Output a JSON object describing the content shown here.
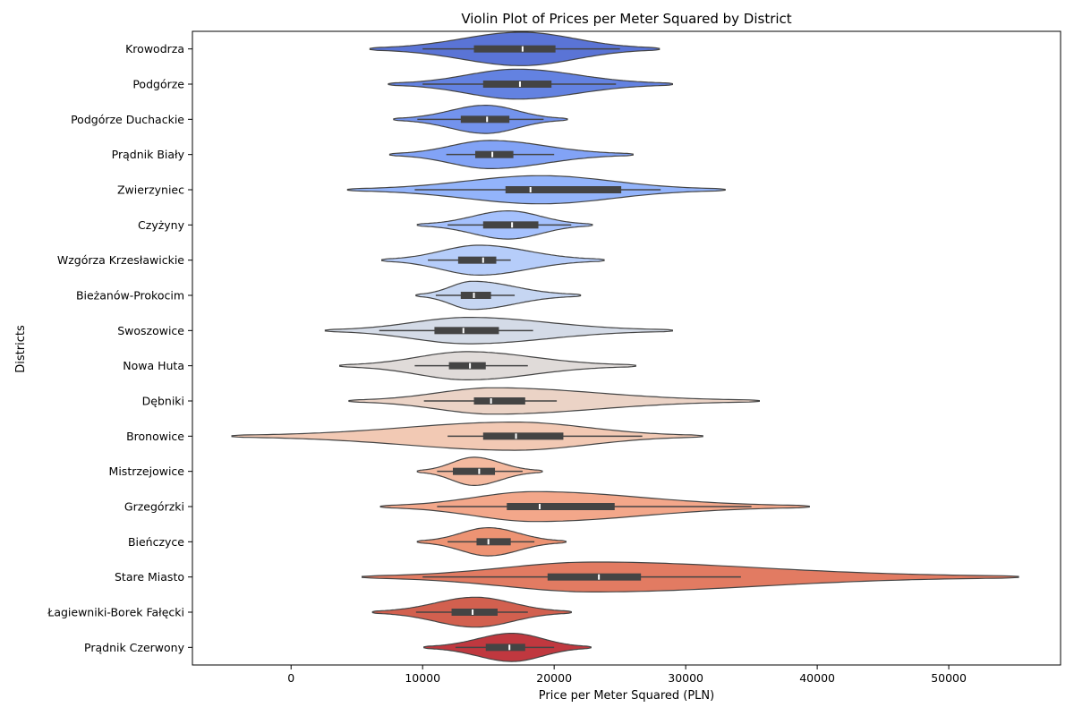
{
  "chart_data": {
    "type": "violin",
    "title": "Violin Plot of Prices per Meter Squared by District",
    "xlabel": "Price per Meter Squared (PLN)",
    "ylabel": "Districts",
    "xlim": [
      -7500,
      58500
    ],
    "xticks": [
      0,
      10000,
      20000,
      30000,
      40000,
      50000
    ],
    "grid": false,
    "colormap": "coolwarm",
    "series": [
      {
        "name": "Krowodrza",
        "color": "#5a74d6",
        "range": [
          6000,
          28000
        ],
        "whiskers": [
          10000,
          25000
        ],
        "q1": 13900,
        "median": 17600,
        "q3": 20100,
        "peak": 17500,
        "width": 0.95
      },
      {
        "name": "Podgórze",
        "color": "#6382e1",
        "range": [
          7400,
          29000
        ],
        "whiskers": [
          10000,
          24700
        ],
        "q1": 14600,
        "median": 17400,
        "q3": 19800,
        "peak": 17200,
        "width": 0.85
      },
      {
        "name": "Podgórze Duchackie",
        "color": "#7393ed",
        "range": [
          7800,
          21000
        ],
        "whiskers": [
          9600,
          19200
        ],
        "q1": 12900,
        "median": 14900,
        "q3": 16600,
        "peak": 14800,
        "width": 0.8
      },
      {
        "name": "Prądnik Biały",
        "color": "#82a3f6",
        "range": [
          7500,
          26000
        ],
        "whiskers": [
          11800,
          20000
        ],
        "q1": 14000,
        "median": 15300,
        "q3": 16900,
        "peak": 15100,
        "width": 0.8
      },
      {
        "name": "Zwierzyniec",
        "color": "#93b4fb",
        "range": [
          4300,
          33000
        ],
        "whiskers": [
          9400,
          28100
        ],
        "q1": 16300,
        "median": 18200,
        "q3": 25100,
        "peak": 19000,
        "width": 0.8
      },
      {
        "name": "Czyżyny",
        "color": "#a5c1fd",
        "range": [
          9600,
          22900
        ],
        "whiskers": [
          11900,
          21300
        ],
        "q1": 14600,
        "median": 16800,
        "q3": 18800,
        "peak": 16500,
        "width": 0.8
      },
      {
        "name": "Wzgórza Krzesławickie",
        "color": "#b6cdfa",
        "range": [
          6900,
          23800
        ],
        "whiskers": [
          10400,
          16700
        ],
        "q1": 12700,
        "median": 14600,
        "q3": 15600,
        "peak": 14300,
        "width": 0.85
      },
      {
        "name": "Bieżanów-Prokocim",
        "color": "#c6d6f2",
        "range": [
          9500,
          22000
        ],
        "whiskers": [
          11000,
          17000
        ],
        "q1": 12900,
        "median": 13900,
        "q3": 15200,
        "peak": 13800,
        "width": 0.8
      },
      {
        "name": "Swoszowice",
        "color": "#d4dbe7",
        "range": [
          2600,
          29000
        ],
        "whiskers": [
          6700,
          18400
        ],
        "q1": 10900,
        "median": 13100,
        "q3": 15800,
        "peak": 13500,
        "width": 0.75
      },
      {
        "name": "Nowa Huta",
        "color": "#e0dbd9",
        "range": [
          3700,
          26200
        ],
        "whiskers": [
          9400,
          18000
        ],
        "q1": 12000,
        "median": 13600,
        "q3": 14800,
        "peak": 13400,
        "width": 0.8
      },
      {
        "name": "Dębniki",
        "color": "#ebd3c6",
        "range": [
          4400,
          35600
        ],
        "whiskers": [
          10100,
          20200
        ],
        "q1": 13900,
        "median": 15200,
        "q3": 17800,
        "peak": 15400,
        "width": 0.75
      },
      {
        "name": "Bronowice",
        "color": "#f2c9b4",
        "range": [
          -4500,
          31300
        ],
        "whiskers": [
          11900,
          26700
        ],
        "q1": 14600,
        "median": 17100,
        "q3": 20700,
        "peak": 17000,
        "width": 0.8
      },
      {
        "name": "Mistrzejowice",
        "color": "#f4b99f",
        "range": [
          9600,
          19100
        ],
        "whiskers": [
          11100,
          17600
        ],
        "q1": 12300,
        "median": 14300,
        "q3": 15500,
        "peak": 13900,
        "width": 0.8
      },
      {
        "name": "Grzegórzki",
        "color": "#f3a78a",
        "range": [
          6800,
          39400
        ],
        "whiskers": [
          11100,
          35000
        ],
        "q1": 16400,
        "median": 18900,
        "q3": 24600,
        "peak": 18500,
        "width": 0.85
      },
      {
        "name": "Bieńczyce",
        "color": "#ed9373",
        "range": [
          9600,
          20900
        ],
        "whiskers": [
          11900,
          18500
        ],
        "q1": 14100,
        "median": 15000,
        "q3": 16700,
        "peak": 15000,
        "width": 0.8
      },
      {
        "name": "Stare Miasto",
        "color": "#e27b62",
        "range": [
          5400,
          55300
        ],
        "whiskers": [
          10000,
          34200
        ],
        "q1": 19500,
        "median": 23400,
        "q3": 26600,
        "peak": 23000,
        "width": 0.85
      },
      {
        "name": "Łagiewniki-Borek Fałęcki",
        "color": "#d2604f",
        "range": [
          6200,
          21300
        ],
        "whiskers": [
          9500,
          18000
        ],
        "q1": 12200,
        "median": 13800,
        "q3": 15700,
        "peak": 14000,
        "width": 0.85
      },
      {
        "name": "Prądnik Czerwony",
        "color": "#c0383f",
        "range": [
          10100,
          22800
        ],
        "whiskers": [
          12500,
          20000
        ],
        "q1": 14800,
        "median": 16600,
        "q3": 17800,
        "peak": 16800,
        "width": 0.8
      }
    ]
  }
}
